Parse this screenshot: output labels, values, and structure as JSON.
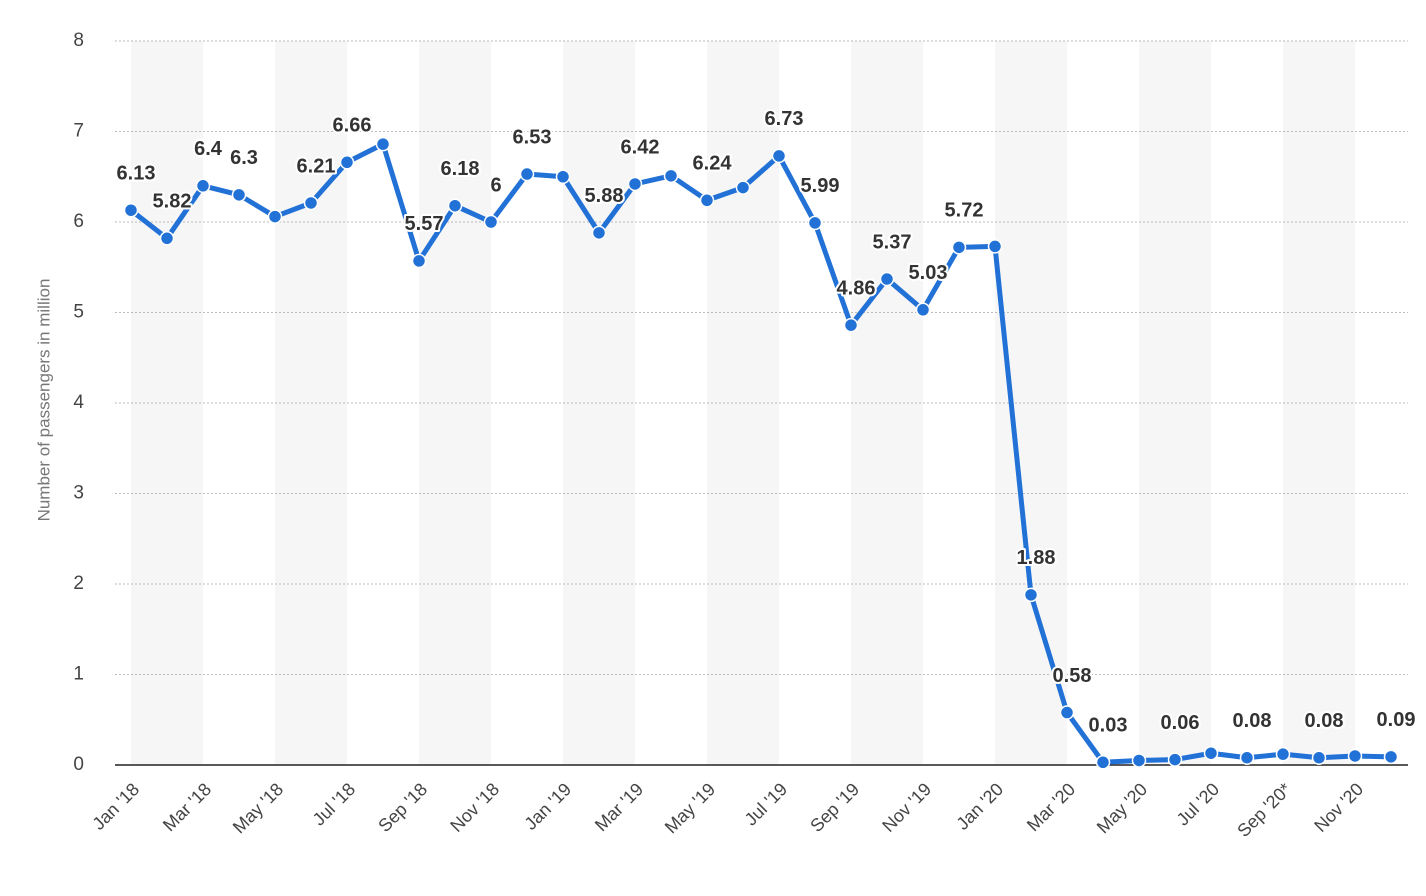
{
  "chart_data": {
    "type": "line",
    "y_label": "Number of passengers in million",
    "categories": [
      "Jan '18",
      null,
      "Mar '18",
      null,
      "May '18",
      null,
      "Jul '18",
      null,
      "Sep '18",
      null,
      "Nov '18",
      null,
      "Jan '19",
      null,
      "Mar '19",
      null,
      "May '19",
      null,
      "Jul '19",
      null,
      "Sep '19",
      null,
      "Nov '19",
      null,
      "Jan '20",
      null,
      "Mar '20",
      null,
      "May '20",
      null,
      "Jul '20",
      null,
      "Sep '20*",
      null,
      "Nov '20",
      null
    ],
    "series": [
      {
        "name": "Passengers",
        "color": "#2171d6",
        "values": [
          6.13,
          5.82,
          6.4,
          6.3,
          6.06,
          6.21,
          6.66,
          6.86,
          5.57,
          6.18,
          6,
          6.53,
          6.5,
          5.88,
          6.42,
          6.51,
          6.24,
          6.38,
          6.73,
          5.99,
          4.86,
          5.37,
          5.03,
          5.72,
          5.73,
          1.88,
          0.58,
          0.03,
          0.05,
          0.06,
          0.13,
          0.08,
          0.12,
          0.08,
          0.1,
          0.09
        ],
        "value_labels": [
          "6.13",
          "5.82",
          "6.4",
          "6.3",
          null,
          "6.21",
          "6.66",
          null,
          "5.57",
          "6.18",
          "6",
          "6.53",
          null,
          "5.88",
          "6.42",
          null,
          "6.24",
          null,
          "6.73",
          "5.99",
          "4.86",
          "5.37",
          "5.03",
          "5.72",
          null,
          "1.88",
          "0.58",
          "0.03",
          null,
          "0.06",
          null,
          "0.08",
          null,
          "0.08",
          null,
          "0.09"
        ]
      }
    ],
    "ylim": [
      0,
      8
    ],
    "yticks": [
      0,
      1,
      2,
      3,
      4,
      5,
      6,
      7,
      8
    ],
    "grid": true
  }
}
